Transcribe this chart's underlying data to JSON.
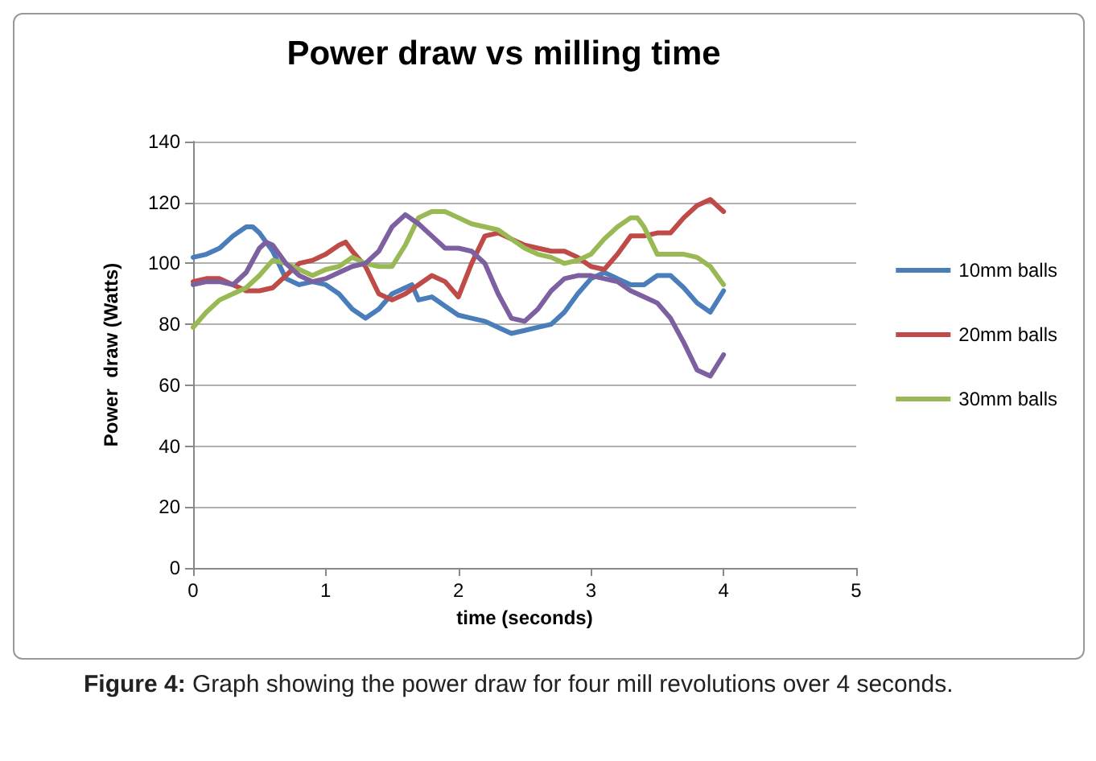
{
  "chart_data": {
    "type": "line",
    "title": "Power draw vs milling time",
    "xlabel": "time (seconds)",
    "ylabel": "Power  draw (Watts)",
    "annotations": [
      "Figure 4: Graph showing the power draw for four mill revolutions over 4 seconds."
    ],
    "xlim": [
      0,
      5
    ],
    "xticks": [
      0,
      1,
      2,
      3,
      4,
      5
    ],
    "ylim": [
      0,
      140
    ],
    "yticks": [
      0,
      20,
      40,
      60,
      80,
      100,
      120,
      140
    ],
    "grid": "y",
    "legend": "right",
    "marker": "none",
    "line_style": "solid",
    "series": [
      {
        "name": "10mm balls",
        "color": "#4a7ebb",
        "x": [
          0,
          0.1,
          0.2,
          0.3,
          0.4,
          0.45,
          0.5,
          0.6,
          0.7,
          0.8,
          0.9,
          1.0,
          1.1,
          1.2,
          1.3,
          1.4,
          1.5,
          1.6,
          1.65,
          1.7,
          1.8,
          1.9,
          2.0,
          2.1,
          2.2,
          2.3,
          2.4,
          2.5,
          2.6,
          2.7,
          2.8,
          2.9,
          3.0,
          3.1,
          3.2,
          3.3,
          3.4,
          3.5,
          3.6,
          3.7,
          3.8,
          3.9,
          4.0
        ],
        "values": [
          102,
          103,
          105,
          109,
          112,
          112,
          110,
          104,
          95,
          93,
          94,
          93,
          90,
          85,
          82,
          85,
          90,
          92,
          93,
          88,
          89,
          86,
          83,
          82,
          81,
          79,
          77,
          78,
          79,
          80,
          84,
          90,
          95,
          97,
          95,
          93,
          93,
          96,
          96,
          92,
          87,
          84,
          91
        ]
      },
      {
        "name": "20mm balls",
        "color": "#be4b48",
        "x": [
          0,
          0.1,
          0.2,
          0.3,
          0.4,
          0.5,
          0.6,
          0.7,
          0.8,
          0.9,
          1.0,
          1.1,
          1.15,
          1.2,
          1.3,
          1.4,
          1.5,
          1.6,
          1.7,
          1.8,
          1.9,
          2.0,
          2.1,
          2.2,
          2.3,
          2.4,
          2.5,
          2.6,
          2.7,
          2.8,
          2.9,
          3.0,
          3.1,
          3.2,
          3.3,
          3.4,
          3.5,
          3.6,
          3.7,
          3.8,
          3.9,
          4.0
        ],
        "values": [
          94,
          95,
          95,
          93,
          91,
          91,
          92,
          96,
          100,
          101,
          103,
          106,
          107,
          104,
          99,
          90,
          88,
          90,
          93,
          96,
          94,
          89,
          100,
          109,
          110,
          108,
          106,
          105,
          104,
          104,
          102,
          99,
          98,
          103,
          109,
          109,
          110,
          110,
          115,
          119,
          121,
          117
        ]
      },
      {
        "name": "30mm balls",
        "color": "#98b954",
        "x": [
          0,
          0.1,
          0.2,
          0.3,
          0.4,
          0.5,
          0.6,
          0.7,
          0.8,
          0.9,
          1.0,
          1.1,
          1.2,
          1.3,
          1.4,
          1.5,
          1.6,
          1.7,
          1.8,
          1.9,
          2.0,
          2.1,
          2.2,
          2.3,
          2.4,
          2.5,
          2.6,
          2.7,
          2.8,
          2.9,
          3.0,
          3.1,
          3.2,
          3.3,
          3.35,
          3.4,
          3.5,
          3.6,
          3.7,
          3.8,
          3.9,
          4.0
        ],
        "values": [
          79,
          84,
          88,
          90,
          92,
          96,
          101,
          100,
          98,
          96,
          98,
          99,
          102,
          100,
          99,
          99,
          106,
          115,
          117,
          117,
          115,
          113,
          112,
          111,
          108,
          105,
          103,
          102,
          100,
          101,
          103,
          108,
          112,
          115,
          115,
          112,
          103,
          103,
          103,
          102,
          99,
          93
        ]
      },
      {
        "color": "#7d60a0",
        "x": [
          0,
          0.1,
          0.2,
          0.3,
          0.4,
          0.5,
          0.55,
          0.6,
          0.7,
          0.8,
          0.9,
          1.0,
          1.1,
          1.2,
          1.3,
          1.4,
          1.5,
          1.6,
          1.7,
          1.8,
          1.9,
          2.0,
          2.1,
          2.2,
          2.3,
          2.4,
          2.5,
          2.6,
          2.7,
          2.8,
          2.9,
          3.0,
          3.1,
          3.2,
          3.3,
          3.4,
          3.5,
          3.6,
          3.7,
          3.8,
          3.9,
          4.0
        ],
        "values": [
          93,
          94,
          94,
          93,
          97,
          105,
          107,
          106,
          100,
          96,
          94,
          95,
          97,
          99,
          100,
          104,
          112,
          116,
          113,
          109,
          105,
          105,
          104,
          100,
          90,
          82,
          81,
          85,
          91,
          95,
          96,
          96,
          95,
          94,
          91,
          89,
          87,
          82,
          74,
          65,
          63,
          70
        ]
      }
    ]
  }
}
